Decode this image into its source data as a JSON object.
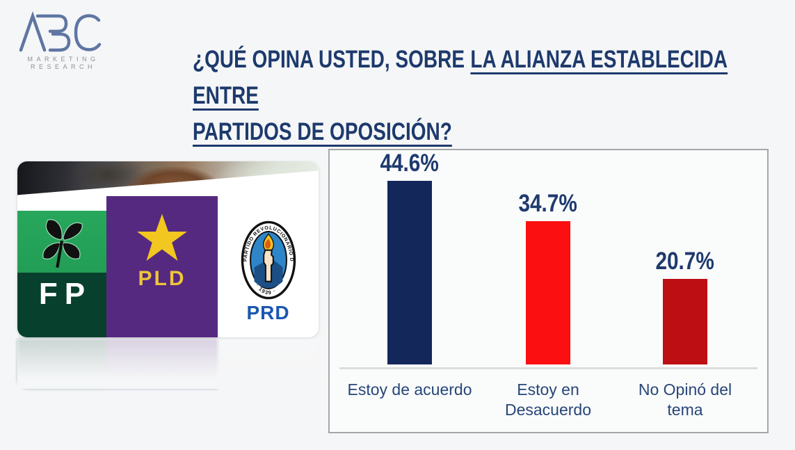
{
  "logo": {
    "brand": "ABC",
    "sub_line1": "MARKETING",
    "sub_line2": "RESEARCH",
    "brand_color": "#5f76a3",
    "sub_color": "#8f8f92"
  },
  "title": {
    "part1": "¿QUÉ OPINA USTED, SOBRE",
    "part2_underlined": "LA ALIANZA ESTABLECIDA ENTRE",
    "part3_underlined": "PARTIDOS DE OPOSICIÓN?",
    "color": "#1d3a6d"
  },
  "montage": {
    "fp_label": "FP",
    "pld_label": "PLD",
    "prd_label": "PRD",
    "prd_ring_text": "PARTIDO REVOLUCIONARIO DOMINICANO",
    "prd_year_text": "· 1939 ·",
    "fp_green": "#22a058",
    "fp_dark_green": "#07402c",
    "pld_purple": "#55297f",
    "star_gold": "#f2c71f",
    "prd_blue": "#1a57b0"
  },
  "chart_data": {
    "type": "bar",
    "title": "¿Qué opina usted, sobre la alianza establecida entre partidos de oposición?",
    "categories": [
      "Estoy de acuerdo",
      "Estoy en Desacuerdo",
      "No Opinó del tema"
    ],
    "values": [
      44.6,
      34.7,
      20.7
    ],
    "value_labels": [
      "44.6%",
      "34.7%",
      "20.7%"
    ],
    "bar_colors": [
      "#14275b",
      "#fb0f10",
      "#bd0e13"
    ],
    "value_label_color": "#1e3a6e",
    "category_label_color": "#274679",
    "baseline_color": "#dcdcdc",
    "ylim": [
      0,
      50
    ],
    "grid": false,
    "legend": false,
    "data_labels_position": "above bars",
    "axis_labels": "category names below baseline, no y-axis shown"
  }
}
